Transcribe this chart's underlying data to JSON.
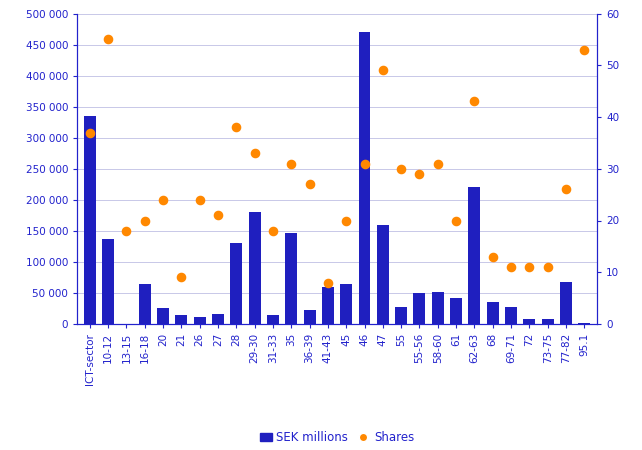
{
  "categories": [
    "ICT-sector",
    "10-12",
    "13-15",
    "16-18",
    "20",
    "21",
    "26",
    "27",
    "28",
    "29-30",
    "31-33",
    "35",
    "36-39",
    "41-43",
    "45",
    "46",
    "47",
    "55",
    "55-56",
    "58-60",
    "61",
    "62-63",
    "68",
    "69-71",
    "72",
    "73-75",
    "77-82",
    "95.1"
  ],
  "bar_values": [
    335000,
    137000,
    0,
    65000,
    26000,
    15000,
    11000,
    16000,
    130000,
    180000,
    15000,
    147000,
    22000,
    60000,
    65000,
    470000,
    160000,
    28000,
    50000,
    52000,
    42000,
    220000,
    35000,
    28000,
    8000,
    8000,
    68000,
    2000
  ],
  "share_values": [
    37,
    55,
    18,
    20,
    24,
    9,
    24,
    21,
    38,
    33,
    18,
    31,
    27,
    8,
    20,
    31,
    49,
    30,
    29,
    31,
    20,
    43,
    13,
    11,
    11,
    11,
    26,
    53
  ],
  "bar_color": "#1f1fbf",
  "dot_color": "#ff8800",
  "left_ylim": [
    0,
    500000
  ],
  "right_ylim": [
    0,
    60
  ],
  "left_yticks": [
    0,
    50000,
    100000,
    150000,
    200000,
    250000,
    300000,
    350000,
    400000,
    450000,
    500000
  ],
  "right_yticks": [
    0,
    10,
    20,
    30,
    40,
    50,
    60
  ],
  "left_yticklabels": [
    "0",
    "50 000",
    "100 000",
    "150 000",
    "200 000",
    "250 000",
    "300 000",
    "350 000",
    "400 000",
    "450 000",
    "500 000"
  ],
  "right_yticklabels": [
    "0",
    "10",
    "20",
    "30",
    "40",
    "50",
    "60"
  ],
  "legend_bar_label": "SEK millions",
  "legend_dot_label": "Shares",
  "axis_color": "#2222cc",
  "tick_color": "#2222cc",
  "grid_color": "#c8c8e8",
  "background_color": "#ffffff",
  "figsize": [
    6.42,
    4.5
  ],
  "dpi": 100
}
